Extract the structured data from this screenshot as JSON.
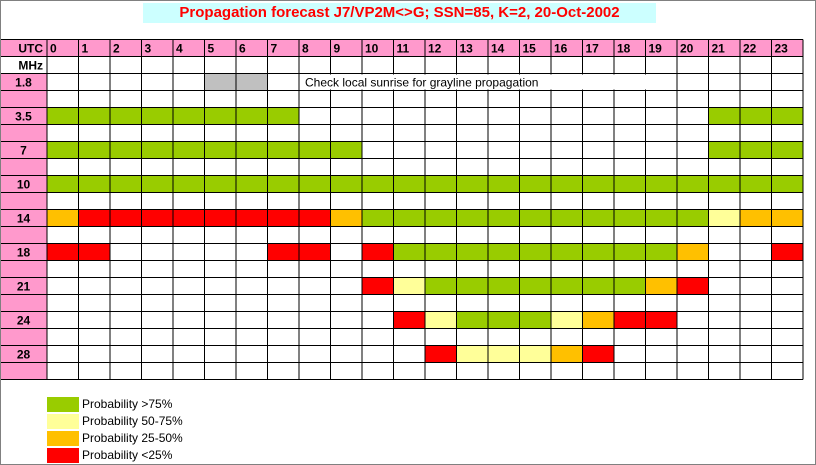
{
  "chart_data": {
    "type": "heatmap",
    "title": "Propagation forecast J7/VP2M<>G; SSN=85, K=2, 20-Oct-2002",
    "row_header": "UTC",
    "unit_label": "MHz",
    "hours": [
      "0",
      "1",
      "2",
      "3",
      "4",
      "5",
      "6",
      "7",
      "8",
      "9",
      "10",
      "11",
      "12",
      "13",
      "14",
      "15",
      "16",
      "17",
      "18",
      "19",
      "20",
      "21",
      "22",
      "23"
    ],
    "bands": [
      {
        "label": "1.8",
        "cells": [
          "",
          "",
          "",
          "",
          "",
          "G",
          "G",
          "",
          "",
          "",
          "",
          "",
          "",
          "",
          "",
          "",
          "",
          "",
          "",
          "",
          "",
          "",
          "",
          ""
        ]
      },
      {
        "label": "3.5",
        "cells": [
          "A",
          "A",
          "A",
          "A",
          "A",
          "A",
          "A",
          "A",
          "",
          "",
          "",
          "",
          "",
          "",
          "",
          "",
          "",
          "",
          "",
          "",
          "",
          "A",
          "A",
          "A"
        ]
      },
      {
        "label": "7",
        "cells": [
          "A",
          "A",
          "A",
          "A",
          "A",
          "A",
          "A",
          "A",
          "A",
          "A",
          "",
          "",
          "",
          "",
          "",
          "",
          "",
          "",
          "",
          "",
          "",
          "A",
          "A",
          "A"
        ]
      },
      {
        "label": "10",
        "cells": [
          "A",
          "A",
          "A",
          "A",
          "A",
          "A",
          "A",
          "A",
          "A",
          "A",
          "A",
          "A",
          "A",
          "A",
          "A",
          "A",
          "A",
          "A",
          "A",
          "A",
          "A",
          "A",
          "A",
          "A"
        ]
      },
      {
        "label": "14",
        "cells": [
          "C",
          "D",
          "D",
          "D",
          "D",
          "D",
          "D",
          "D",
          "D",
          "C",
          "A",
          "A",
          "A",
          "A",
          "A",
          "A",
          "A",
          "A",
          "A",
          "A",
          "A",
          "B",
          "C",
          "C"
        ]
      },
      {
        "label": "18",
        "cells": [
          "D",
          "D",
          "",
          "",
          "",
          "",
          "",
          "D",
          "D",
          "",
          "D",
          "A",
          "A",
          "A",
          "A",
          "A",
          "A",
          "A",
          "A",
          "A",
          "C",
          "",
          "",
          "D"
        ]
      },
      {
        "label": "21",
        "cells": [
          "",
          "",
          "",
          "",
          "",
          "",
          "",
          "",
          "",
          "",
          "D",
          "B",
          "A",
          "A",
          "A",
          "A",
          "A",
          "A",
          "A",
          "C",
          "D",
          "",
          "",
          ""
        ]
      },
      {
        "label": "24",
        "cells": [
          "",
          "",
          "",
          "",
          "",
          "",
          "",
          "",
          "",
          "",
          "",
          "D",
          "B",
          "A",
          "A",
          "A",
          "B",
          "C",
          "D",
          "D",
          "",
          "",
          "",
          ""
        ]
      },
      {
        "label": "28",
        "cells": [
          "",
          "",
          "",
          "",
          "",
          "",
          "",
          "",
          "",
          "",
          "",
          "",
          "D",
          "B",
          "B",
          "B",
          "C",
          "D",
          "",
          "",
          "",
          "",
          "",
          ""
        ]
      }
    ],
    "annotation": "Check local sunrise for grayline propagation",
    "legend": [
      {
        "key": "A",
        "label": "Probability >75%",
        "color": "#99cc00"
      },
      {
        "key": "B",
        "label": "Probability 50-75%",
        "color": "#ffff99"
      },
      {
        "key": "C",
        "label": "Probability 25-50%",
        "color": "#ffc000"
      },
      {
        "key": "D",
        "label": "Probability <25%",
        "color": "#ff0000"
      }
    ],
    "grayline_color": "#c0c0c0",
    "header_color": "#ff99cc"
  }
}
